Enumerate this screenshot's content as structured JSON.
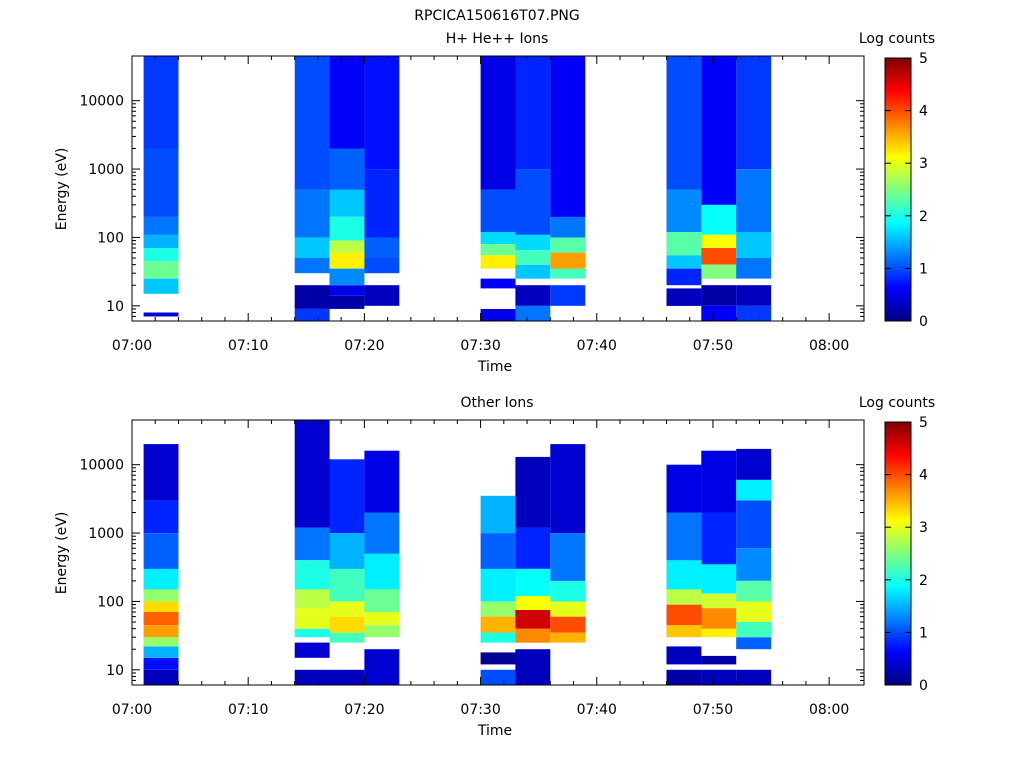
{
  "figure": {
    "title": "RPCICA150616T07.PNG"
  },
  "panels": [
    {
      "id": "hplus",
      "title": "H+ He++ Ions",
      "xlabel": "Time",
      "ylabel": "Energy (eV)",
      "colorbar_label": "Log counts",
      "x_ticks": [
        "07:00",
        "07:10",
        "07:20",
        "07:30",
        "07:40",
        "07:50",
        "08:00"
      ],
      "y_ticks": [
        "10",
        "100",
        "1000",
        "10000"
      ],
      "colorbar_ticks": [
        "0",
        "1",
        "2",
        "3",
        "4",
        "5"
      ]
    },
    {
      "id": "other",
      "title": "Other Ions",
      "xlabel": "Time",
      "ylabel": "Energy (eV)",
      "colorbar_label": "Log counts",
      "x_ticks": [
        "07:00",
        "07:10",
        "07:20",
        "07:30",
        "07:40",
        "07:50",
        "08:00"
      ],
      "y_ticks": [
        "10",
        "100",
        "1000",
        "10000"
      ],
      "colorbar_ticks": [
        "0",
        "1",
        "2",
        "3",
        "4",
        "5"
      ]
    }
  ],
  "chart_data": [
    {
      "type": "heatmap",
      "title": "H+ He++ Ions",
      "xlabel": "Time",
      "ylabel": "Energy (eV)",
      "yscale": "log",
      "ylim": [
        6,
        45000
      ],
      "xlim": [
        "07:00",
        "08:03"
      ],
      "zlabel": "Log counts",
      "zlim": [
        0,
        5
      ],
      "colormap": "rainbow (dark blue to dark red)",
      "columns": [
        {
          "x_start": "07:01",
          "x_end": "07:04",
          "bins": [
            [
              7,
              8,
              0.4
            ],
            [
              15,
              25,
              1.6
            ],
            [
              25,
              45,
              2.4
            ],
            [
              45,
              70,
              2.0
            ],
            [
              70,
              110,
              1.5
            ],
            [
              110,
              200,
              1.2
            ],
            [
              200,
              2000,
              1.0
            ],
            [
              2000,
              45000,
              0.9
            ]
          ]
        },
        {
          "x_start": "07:14",
          "x_end": "07:17",
          "bins": [
            [
              6,
              9,
              0.9
            ],
            [
              9,
              20,
              0.2
            ],
            [
              30,
              50,
              1.2
            ],
            [
              50,
              100,
              1.6
            ],
            [
              100,
              500,
              1.2
            ],
            [
              500,
              45000,
              1.0
            ]
          ]
        },
        {
          "x_start": "07:17",
          "x_end": "07:20",
          "bins": [
            [
              9,
              14,
              0.2
            ],
            [
              14,
              20,
              0.5
            ],
            [
              20,
              35,
              1.3
            ],
            [
              35,
              60,
              3.2
            ],
            [
              60,
              90,
              2.8
            ],
            [
              90,
              200,
              2.0
            ],
            [
              200,
              500,
              1.6
            ],
            [
              500,
              2000,
              1.1
            ],
            [
              2000,
              45000,
              0.6
            ]
          ]
        },
        {
          "x_start": "07:20",
          "x_end": "07:23",
          "bins": [
            [
              10,
              20,
              0.3
            ],
            [
              30,
              50,
              1.0
            ],
            [
              50,
              100,
              1.1
            ],
            [
              100,
              1000,
              0.8
            ],
            [
              1000,
              45000,
              0.7
            ]
          ]
        },
        {
          "x_start": "07:30",
          "x_end": "07:33",
          "bins": [
            [
              6,
              9,
              0.5
            ],
            [
              18,
              25,
              0.6
            ],
            [
              35,
              55,
              3.2
            ],
            [
              55,
              80,
              2.4
            ],
            [
              80,
              120,
              1.7
            ],
            [
              120,
              500,
              1.0
            ],
            [
              500,
              45000,
              0.5
            ]
          ]
        },
        {
          "x_start": "07:33",
          "x_end": "07:36",
          "bins": [
            [
              6,
              10,
              1.2
            ],
            [
              10,
              20,
              0.3
            ],
            [
              25,
              40,
              1.6
            ],
            [
              40,
              65,
              2.2
            ],
            [
              65,
              110,
              1.7
            ],
            [
              110,
              1000,
              1.0
            ],
            [
              1000,
              45000,
              0.8
            ]
          ]
        },
        {
          "x_start": "07:36",
          "x_end": "07:39",
          "bins": [
            [
              10,
              20,
              0.9
            ],
            [
              25,
              35,
              2.2
            ],
            [
              35,
              60,
              3.6
            ],
            [
              60,
              100,
              2.3
            ],
            [
              100,
              200,
              1.2
            ],
            [
              200,
              45000,
              0.6
            ]
          ]
        },
        {
          "x_start": "07:46",
          "x_end": "07:49",
          "bins": [
            [
              10,
              18,
              0.3
            ],
            [
              20,
              35,
              0.8
            ],
            [
              35,
              55,
              1.6
            ],
            [
              55,
              120,
              2.3
            ],
            [
              120,
              500,
              1.3
            ],
            [
              500,
              45000,
              1.0
            ]
          ]
        },
        {
          "x_start": "07:49",
          "x_end": "07:52",
          "bins": [
            [
              6,
              10,
              0.6
            ],
            [
              10,
              20,
              0.2
            ],
            [
              25,
              40,
              2.5
            ],
            [
              40,
              70,
              4.0
            ],
            [
              70,
              110,
              3.1
            ],
            [
              110,
              300,
              1.9
            ],
            [
              300,
              45000,
              0.6
            ]
          ]
        },
        {
          "x_start": "07:52",
          "x_end": "07:55",
          "bins": [
            [
              6,
              10,
              0.9
            ],
            [
              10,
              20,
              0.3
            ],
            [
              25,
              50,
              1.2
            ],
            [
              50,
              120,
              1.6
            ],
            [
              120,
              1000,
              1.2
            ],
            [
              1000,
              45000,
              0.9
            ]
          ]
        }
      ]
    },
    {
      "type": "heatmap",
      "title": "Other Ions",
      "xlabel": "Time",
      "ylabel": "Energy (eV)",
      "yscale": "log",
      "ylim": [
        6,
        45000
      ],
      "xlim": [
        "07:00",
        "08:03"
      ],
      "zlabel": "Log counts",
      "zlim": [
        0,
        5
      ],
      "colormap": "rainbow (dark blue to dark red)",
      "columns": [
        {
          "x_start": "07:01",
          "x_end": "07:04",
          "bins": [
            [
              6,
              10,
              0.3
            ],
            [
              10,
              15,
              0.7
            ],
            [
              15,
              22,
              1.5
            ],
            [
              22,
              30,
              2.6
            ],
            [
              30,
              45,
              3.6
            ],
            [
              45,
              70,
              3.9
            ],
            [
              70,
              100,
              3.3
            ],
            [
              100,
              150,
              2.6
            ],
            [
              150,
              300,
              1.8
            ],
            [
              300,
              1000,
              1.1
            ],
            [
              1000,
              3000,
              0.8
            ],
            [
              3000,
              20000,
              0.4
            ]
          ]
        },
        {
          "x_start": "07:14",
          "x_end": "07:17",
          "bins": [
            [
              6,
              10,
              0.3
            ],
            [
              15,
              25,
              0.4
            ],
            [
              30,
              40,
              2.0
            ],
            [
              40,
              80,
              3.0
            ],
            [
              80,
              150,
              2.8
            ],
            [
              150,
              400,
              2.0
            ],
            [
              400,
              1200,
              1.2
            ],
            [
              1200,
              45000,
              0.4
            ]
          ]
        },
        {
          "x_start": "07:17",
          "x_end": "07:20",
          "bins": [
            [
              6,
              10,
              0.3
            ],
            [
              25,
              35,
              2.2
            ],
            [
              35,
              60,
              3.3
            ],
            [
              60,
              100,
              3.0
            ],
            [
              100,
              300,
              2.2
            ],
            [
              300,
              1000,
              1.5
            ],
            [
              1000,
              12000,
              0.8
            ]
          ]
        },
        {
          "x_start": "07:20",
          "x_end": "07:23",
          "bins": [
            [
              6,
              20,
              0.4
            ],
            [
              30,
              45,
              2.6
            ],
            [
              45,
              70,
              3.0
            ],
            [
              70,
              150,
              2.4
            ],
            [
              150,
              500,
              1.8
            ],
            [
              500,
              2000,
              1.2
            ],
            [
              2000,
              16000,
              0.5
            ]
          ]
        },
        {
          "x_start": "07:30",
          "x_end": "07:33",
          "bins": [
            [
              6,
              10,
              1.0
            ],
            [
              12,
              18,
              0.1
            ],
            [
              25,
              35,
              2.0
            ],
            [
              35,
              60,
              3.5
            ],
            [
              60,
              100,
              2.6
            ],
            [
              100,
              300,
              1.8
            ],
            [
              300,
              1000,
              1.1
            ],
            [
              1000,
              3500,
              1.5
            ]
          ]
        },
        {
          "x_start": "07:33",
          "x_end": "07:36",
          "bins": [
            [
              6,
              20,
              0.3
            ],
            [
              25,
              40,
              3.7
            ],
            [
              40,
              75,
              4.6
            ],
            [
              75,
              120,
              3.1
            ],
            [
              120,
              300,
              1.9
            ],
            [
              300,
              1200,
              0.8
            ],
            [
              1200,
              13000,
              0.3
            ]
          ]
        },
        {
          "x_start": "07:36",
          "x_end": "07:39",
          "bins": [
            [
              25,
              35,
              3.5
            ],
            [
              35,
              60,
              4.0
            ],
            [
              60,
              100,
              3.0
            ],
            [
              100,
              200,
              2.0
            ],
            [
              200,
              1000,
              1.2
            ],
            [
              1000,
              20000,
              0.4
            ]
          ]
        },
        {
          "x_start": "07:46",
          "x_end": "07:49",
          "bins": [
            [
              6,
              10,
              0.2
            ],
            [
              12,
              22,
              0.3
            ],
            [
              30,
              45,
              3.4
            ],
            [
              45,
              90,
              4.0
            ],
            [
              90,
              150,
              2.8
            ],
            [
              150,
              400,
              1.8
            ],
            [
              400,
              2000,
              1.2
            ],
            [
              2000,
              10000,
              0.5
            ]
          ]
        },
        {
          "x_start": "07:49",
          "x_end": "07:52",
          "bins": [
            [
              6,
              10,
              0.3
            ],
            [
              12,
              16,
              0.2
            ],
            [
              30,
              40,
              3.2
            ],
            [
              40,
              80,
              3.7
            ],
            [
              80,
              130,
              2.9
            ],
            [
              130,
              350,
              1.8
            ],
            [
              350,
              2000,
              0.8
            ],
            [
              2000,
              16000,
              0.5
            ]
          ]
        },
        {
          "x_start": "07:52",
          "x_end": "07:55",
          "bins": [
            [
              6,
              10,
              0.3
            ],
            [
              20,
              30,
              1.1
            ],
            [
              30,
              50,
              2.2
            ],
            [
              50,
              100,
              3.0
            ],
            [
              100,
              200,
              2.3
            ],
            [
              200,
              600,
              1.3
            ],
            [
              600,
              3000,
              1.0
            ],
            [
              3000,
              6000,
              1.8
            ],
            [
              6000,
              17000,
              0.4
            ]
          ]
        }
      ]
    }
  ]
}
